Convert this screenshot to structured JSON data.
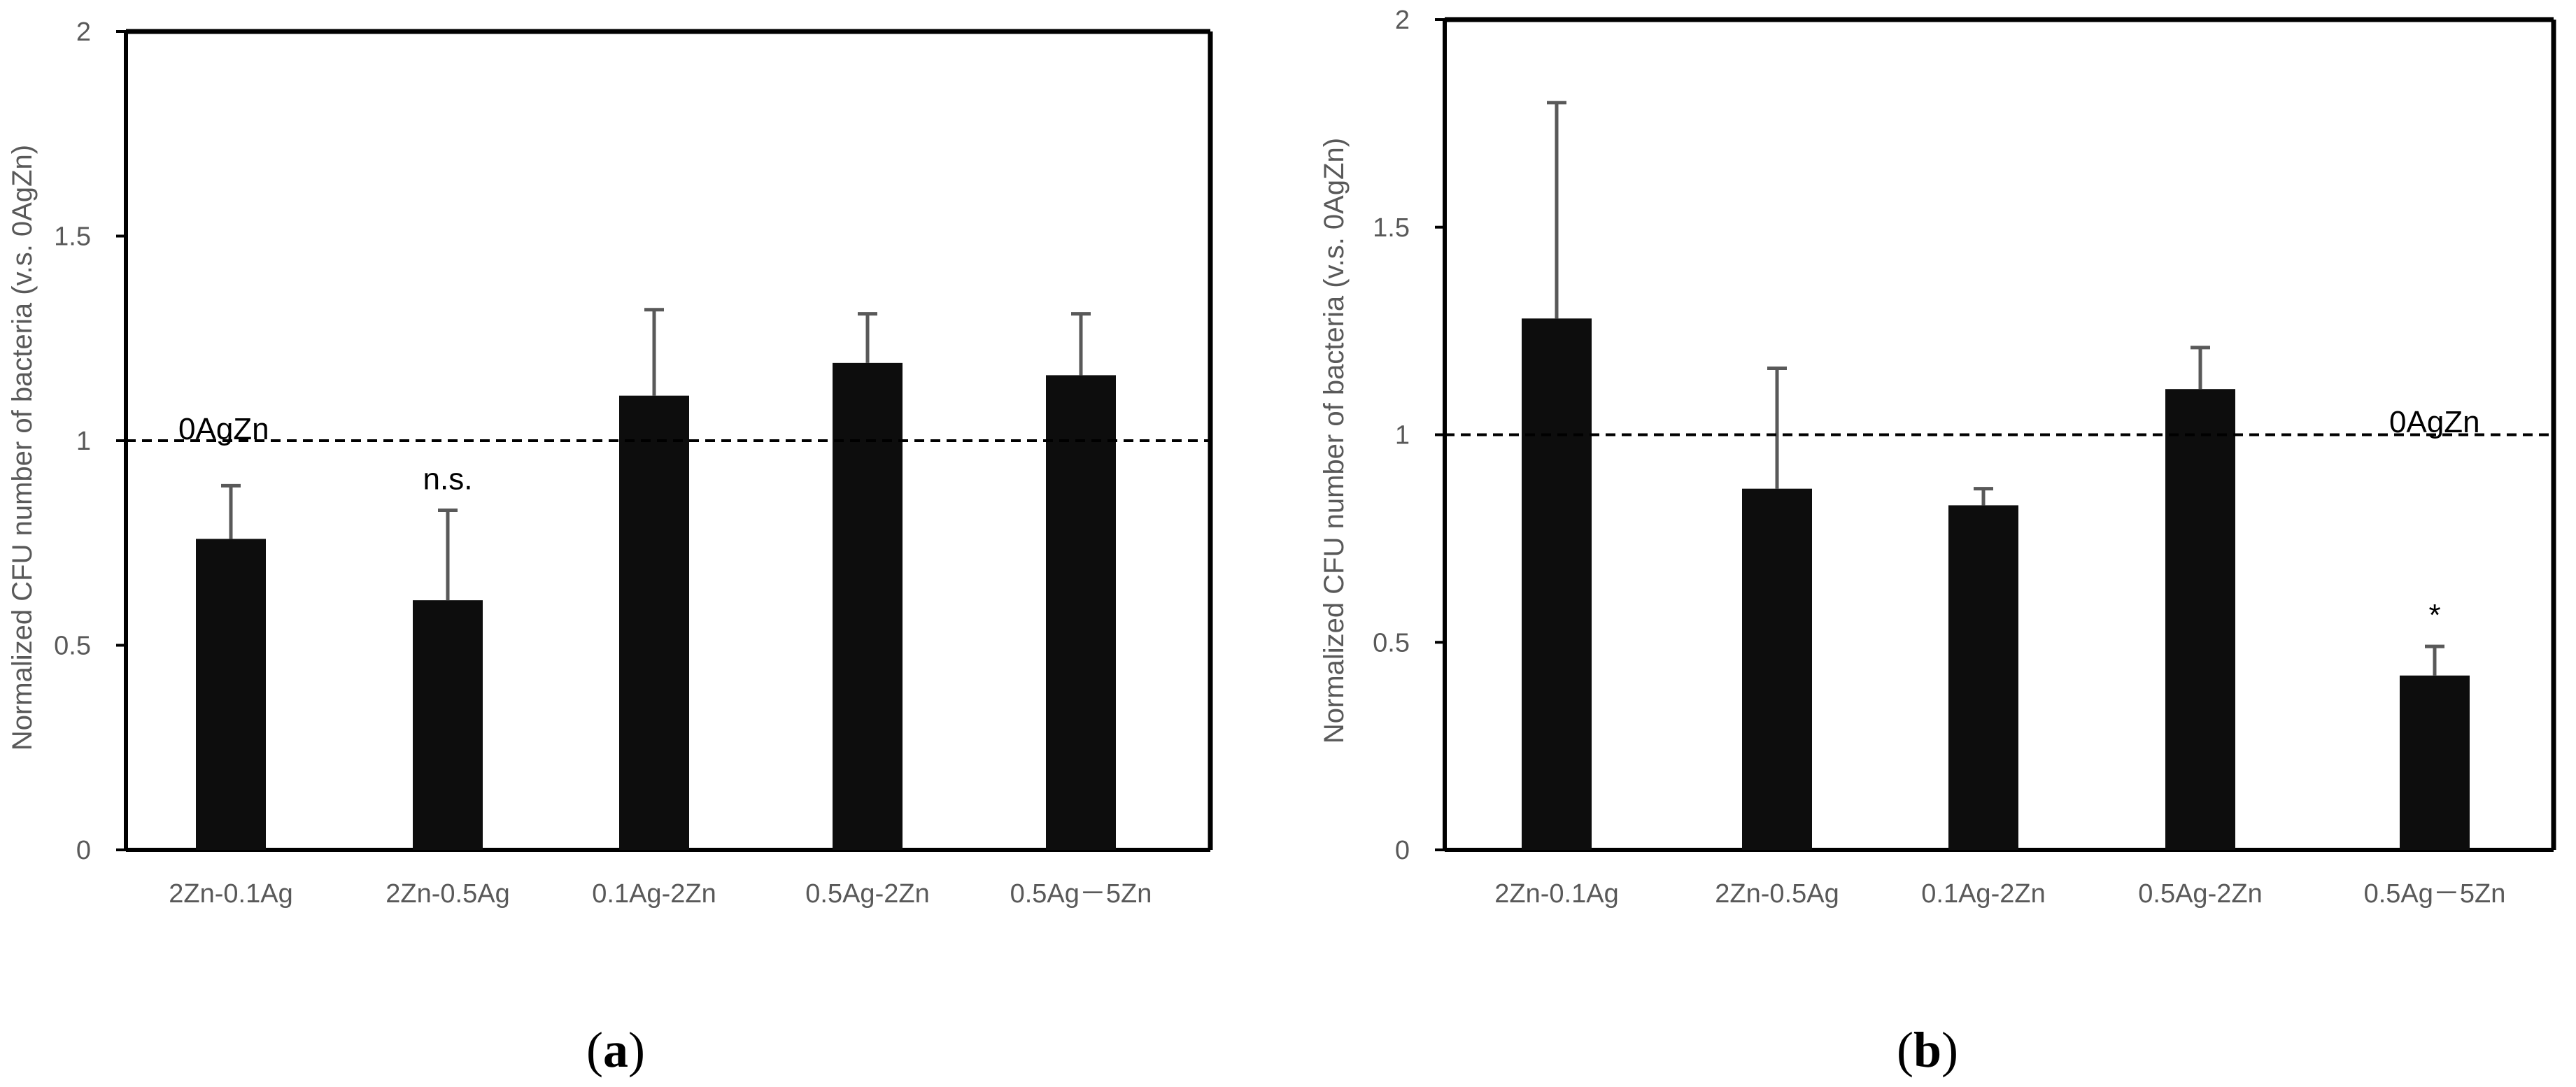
{
  "chart_data": [
    {
      "type": "bar",
      "panel_label": "a",
      "ylabel": "Normalized CFU number of bacteria (v.s. 0AgZn)",
      "xlabel": "",
      "ylim": [
        0,
        2
      ],
      "yticks": [
        "0",
        "0.5",
        "1",
        "1.5",
        "2"
      ],
      "categories": [
        "2Zn-0.1Ag",
        "2Zn-0.5Ag",
        "0.1Ag-2Zn",
        "0.5Ag-2Zn",
        "0.5Ag－5Zn"
      ],
      "values": [
        0.76,
        0.61,
        1.11,
        1.19,
        1.16
      ],
      "errors": [
        0.13,
        0.22,
        0.21,
        0.12,
        0.15
      ],
      "annotations": [
        {
          "category_index": 1,
          "text": "n.s."
        }
      ],
      "reference_line": {
        "value": 1,
        "label": "0AgZn",
        "style": "dashed"
      },
      "bar_color": "#0d0d0d",
      "error_color": "#595959"
    },
    {
      "type": "bar",
      "panel_label": "b",
      "ylabel": "Normalized CFU number of bacteria (v.s. 0AgZn)",
      "xlabel": "",
      "ylim": [
        0,
        2
      ],
      "yticks": [
        "0",
        "0.5",
        "1",
        "1.5",
        "2"
      ],
      "categories": [
        "2Zn-0.1Ag",
        "2Zn-0.5Ag",
        "0.1Ag-2Zn",
        "0.5Ag-2Zn",
        "0.5Ag－5Zn"
      ],
      "values": [
        1.28,
        0.87,
        0.83,
        1.11,
        0.42
      ],
      "errors": [
        0.52,
        0.29,
        0.04,
        0.1,
        0.07
      ],
      "annotations": [
        {
          "category_index": 4,
          "text": "*"
        }
      ],
      "reference_line": {
        "value": 1,
        "label": "0AgZn",
        "style": "dashed"
      },
      "bar_color": "#0d0d0d",
      "error_color": "#595959"
    }
  ]
}
